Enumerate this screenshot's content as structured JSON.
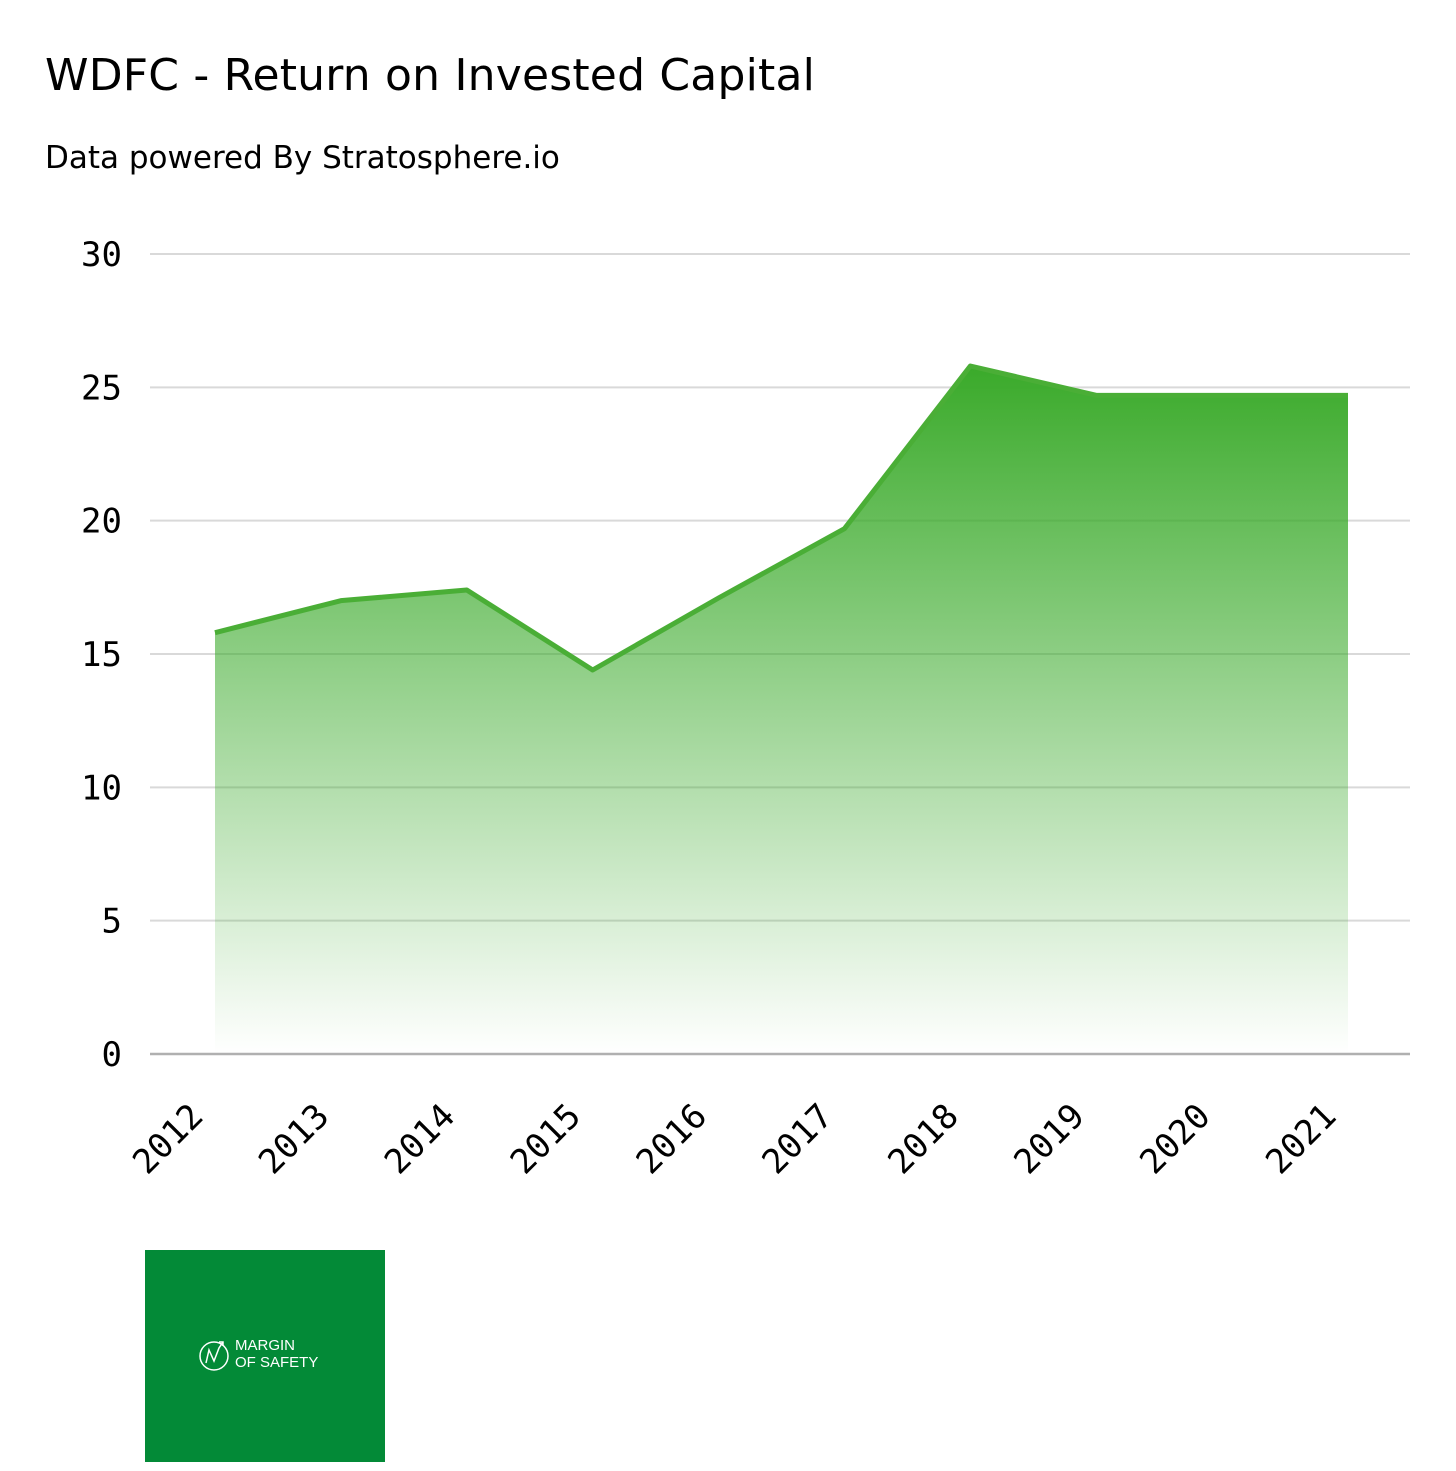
{
  "title": "WDFC - Return on Invested Capital",
  "subtitle": "Data powered By Stratosphere.io",
  "logo": {
    "text_line1": "MARGIN",
    "text_line2": "OF SAFETY",
    "color": "#038a37"
  },
  "colors": {
    "area_top": "#3aaa2a",
    "line": "#4aae36",
    "grid": "#d9d9d9",
    "baseline": "#b0b0b0"
  },
  "chart_data": {
    "type": "area",
    "title": "WDFC - Return on Invested Capital",
    "xlabel": "",
    "ylabel": "",
    "categories": [
      "2012",
      "2013",
      "2014",
      "2015",
      "2016",
      "2017",
      "2018",
      "2019",
      "2020",
      "2021"
    ],
    "series": [
      {
        "values": [
          15.8,
          17.0,
          17.4,
          14.4,
          17.1,
          19.7,
          25.8,
          24.7,
          24.7,
          24.7
        ]
      }
    ],
    "ylim": [
      0,
      30
    ],
    "yticks": [
      0,
      5,
      10,
      15,
      20,
      25,
      30
    ],
    "grid": true
  }
}
